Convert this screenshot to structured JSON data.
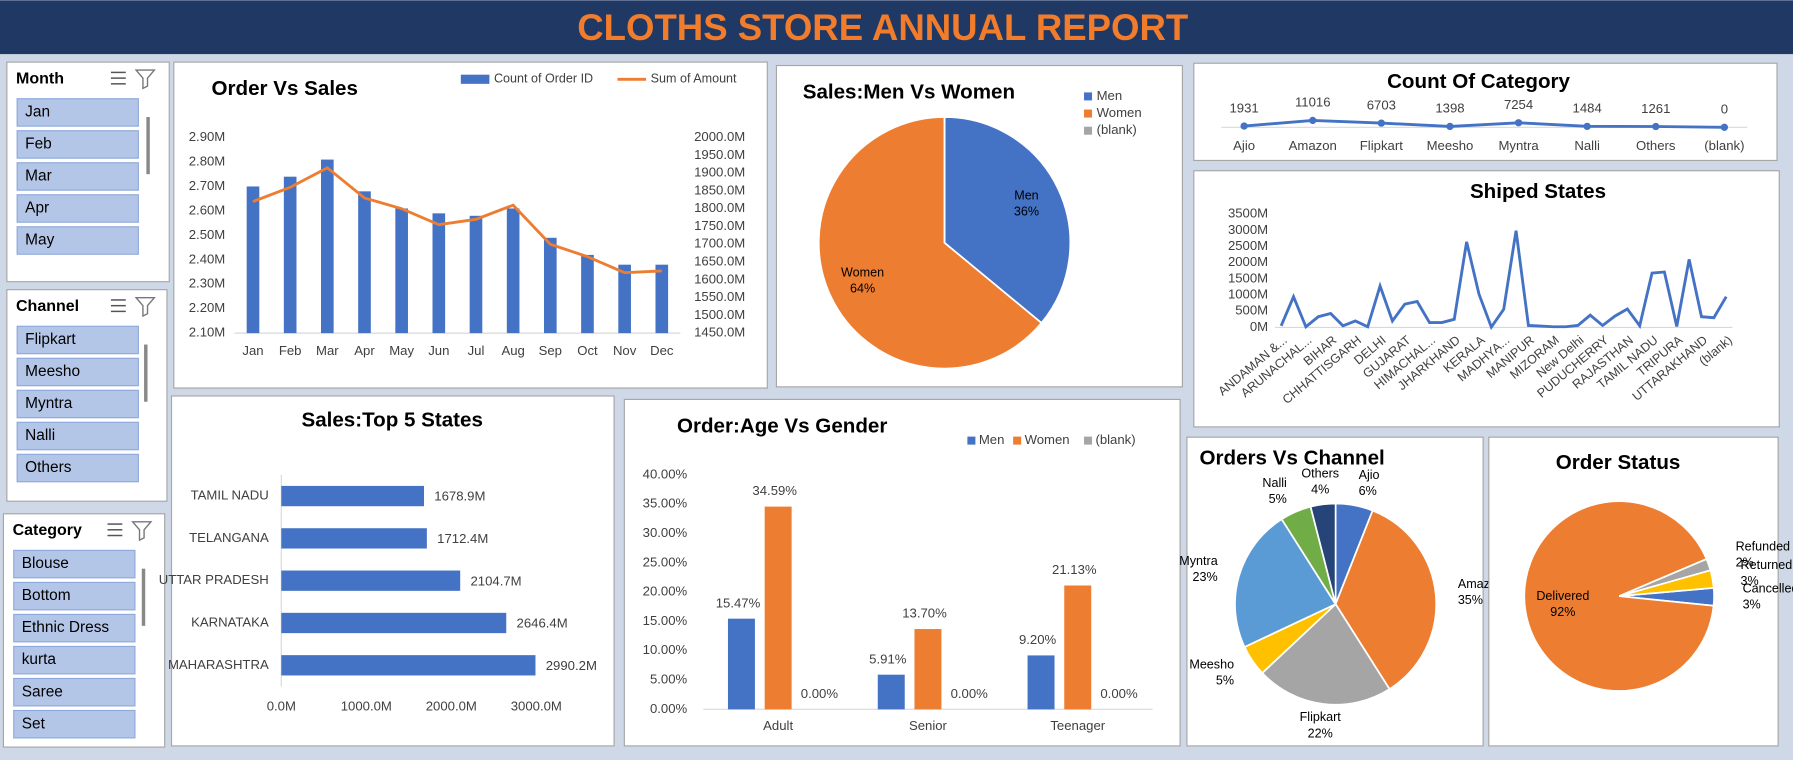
{
  "title": "CLOTHS STORE ANNUAL REPORT",
  "slicers": [
    {
      "title": "Month",
      "items": [
        "Jan",
        "Feb",
        "Mar",
        "Apr",
        "May"
      ]
    },
    {
      "title": "Channel",
      "items": [
        "Flipkart",
        "Meesho",
        "Myntra",
        "Nalli",
        "Others"
      ]
    },
    {
      "title": "Category",
      "items": [
        "Blouse",
        "Bottom",
        "Ethnic Dress",
        "kurta",
        "Saree",
        "Set"
      ]
    }
  ],
  "chart_data": [
    {
      "type": "bar_line",
      "title": "Order Vs Sales",
      "categories": [
        "Jan",
        "Feb",
        "Mar",
        "Apr",
        "May",
        "Jun",
        "Jul",
        "Aug",
        "Sep",
        "Oct",
        "Nov",
        "Dec"
      ],
      "series": [
        {
          "name": "Count of Order ID",
          "color": "#4472c4",
          "values": [
            2.7,
            2.74,
            2.81,
            2.68,
            2.61,
            2.59,
            2.58,
            2.61,
            2.49,
            2.42,
            2.38,
            2.38
          ]
        },
        {
          "name": "Sum of Amount",
          "color": "#ed7d31",
          "axis": "y2",
          "values": [
            1820,
            1860,
            1915,
            1830,
            1800,
            1755,
            1770,
            1810,
            1700,
            1665,
            1620,
            1625
          ]
        }
      ],
      "ylim": [
        2.1,
        2.9
      ],
      "yticks": [
        {
          "value": 2.1,
          "label": "2.10M"
        },
        {
          "value": 2.2,
          "label": "2.20M"
        },
        {
          "value": 2.3,
          "label": "2.30M"
        },
        {
          "value": 2.4,
          "label": "2.40M"
        },
        {
          "value": 2.5,
          "label": "2.50M"
        },
        {
          "value": 2.6,
          "label": "2.60M"
        },
        {
          "value": 2.7,
          "label": "2.70M"
        },
        {
          "value": 2.8,
          "label": "2.80M"
        },
        {
          "value": 2.9,
          "label": "2.90M"
        }
      ],
      "y2lim": [
        1450,
        2000
      ],
      "y2ticks": [
        {
          "value": 1450,
          "label": "1450.0M"
        },
        {
          "value": 1500,
          "label": "1500.0M"
        },
        {
          "value": 1550,
          "label": "1550.0M"
        },
        {
          "value": 1600,
          "label": "1600.0M"
        },
        {
          "value": 1650,
          "label": "1650.0M"
        },
        {
          "value": 1700,
          "label": "1700.0M"
        },
        {
          "value": 1750,
          "label": "1750.0M"
        },
        {
          "value": 1800,
          "label": "1800.0M"
        },
        {
          "value": 1850,
          "label": "1850.0M"
        },
        {
          "value": 1900,
          "label": "1900.0M"
        },
        {
          "value": 1950,
          "label": "1950.0M"
        },
        {
          "value": 2000,
          "label": "2000.0M"
        }
      ]
    },
    {
      "type": "pie",
      "title": "Sales:Men Vs Women",
      "categories": [
        "Men",
        "Women",
        "(blank)"
      ],
      "values": [
        36,
        64,
        0
      ],
      "value_labels": [
        "36%",
        "64%",
        null
      ],
      "colors": [
        "#4472c4",
        "#ed7d31",
        "#a5a5a5"
      ],
      "legend": "right"
    },
    {
      "type": "line",
      "title": "Count Of Category",
      "categories": [
        "Ajio",
        "Amazon",
        "Flipkart",
        "Meesho",
        "Myntra",
        "Nalli",
        "Others",
        "(blank)"
      ],
      "values": [
        1931,
        11016,
        6703,
        1398,
        7254,
        1484,
        1261,
        0
      ],
      "color": "#4472c4",
      "markers": true,
      "data_labels": true
    },
    {
      "type": "line",
      "title": "Shiped States",
      "categories": [
        "ANDAMAN &...",
        null,
        "ARUNACHAL...",
        null,
        "BIHAR",
        null,
        "CHHATTISGARH",
        null,
        "DELHI",
        null,
        "GUJARAT",
        null,
        "HIMACHAL...",
        null,
        "JHARKHAND",
        null,
        "KERALA",
        null,
        "MADHYA...",
        null,
        "MANIPUR",
        null,
        "MIZORAM",
        null,
        "New Delhi",
        null,
        "PUDUCHERRY",
        null,
        "RAJASTHAN",
        null,
        "TAMIL NADU",
        null,
        "TRIPURA",
        null,
        "UTTARAKHAND",
        null,
        "(blank)"
      ],
      "values": [
        50,
        950,
        20,
        330,
        430,
        50,
        200,
        20,
        1280,
        200,
        720,
        800,
        150,
        150,
        250,
        2646.4,
        1030,
        10,
        560,
        2990.2,
        60,
        40,
        20,
        20,
        60,
        380,
        60,
        350,
        570,
        50,
        1678.9,
        1712.4,
        30,
        2104.7,
        330,
        300,
        950
      ],
      "color": "#4472c4",
      "ylim": [
        0,
        3500
      ],
      "yticks": [
        {
          "value": 0,
          "label": "0M"
        },
        {
          "value": 500,
          "label": "500M"
        },
        {
          "value": 1000,
          "label": "1000M"
        },
        {
          "value": 1500,
          "label": "1500M"
        },
        {
          "value": 2000,
          "label": "2000M"
        },
        {
          "value": 2500,
          "label": "2500M"
        },
        {
          "value": 3000,
          "label": "3000M"
        },
        {
          "value": 3500,
          "label": "3500M"
        }
      ]
    },
    {
      "type": "hbar",
      "title": "Sales:Top 5 States",
      "categories": [
        "TAMIL NADU",
        "TELANGANA",
        "UTTAR PRADESH",
        "KARNATAKA",
        "MAHARASHTRA"
      ],
      "values": [
        1678.9,
        1712.4,
        2104.7,
        2646.4,
        2990.2
      ],
      "value_labels": [
        "1678.9M",
        "1712.4M",
        "2104.7M",
        "2646.4M",
        "2990.2M"
      ],
      "color": "#4472c4",
      "xlim": [
        0,
        3000
      ],
      "xticks": [
        {
          "value": 0,
          "label": "0.0M"
        },
        {
          "value": 1000,
          "label": "1000.0M"
        },
        {
          "value": 2000,
          "label": "2000.0M"
        },
        {
          "value": 3000,
          "label": "3000.0M"
        }
      ]
    },
    {
      "type": "grouped_bar",
      "title": "Order:Age Vs Gender",
      "categories": [
        "Adult",
        "Senior",
        "Teenager"
      ],
      "series": [
        {
          "name": "Men",
          "color": "#4472c4",
          "values": [
            15.47,
            5.91,
            9.2
          ],
          "value_labels": [
            "15.47%",
            "5.91%",
            "9.20%"
          ]
        },
        {
          "name": "Women",
          "color": "#ed7d31",
          "values": [
            34.59,
            13.7,
            21.13
          ],
          "value_labels": [
            "34.59%",
            "13.70%",
            "21.13%"
          ]
        },
        {
          "name": "(blank)",
          "color": "#a5a5a5",
          "values": [
            0,
            0,
            0
          ],
          "value_labels": [
            "0.00%",
            "0.00%",
            "0.00%"
          ]
        }
      ],
      "ylim": [
        0,
        40
      ],
      "yticks": [
        {
          "value": 0,
          "label": "0.00%"
        },
        {
          "value": 5,
          "label": "5.00%"
        },
        {
          "value": 10,
          "label": "10.00%"
        },
        {
          "value": 15,
          "label": "15.00%"
        },
        {
          "value": 20,
          "label": "20.00%"
        },
        {
          "value": 25,
          "label": "25.00%"
        },
        {
          "value": 30,
          "label": "30.00%"
        },
        {
          "value": 35,
          "label": "35.00%"
        },
        {
          "value": 40,
          "label": "40.00%"
        }
      ]
    },
    {
      "type": "pie",
      "title": "Orders Vs Channel",
      "categories": [
        "Ajio",
        "Amazon",
        "Flipkart",
        "Meesho",
        "Myntra",
        "Nalli",
        "Others"
      ],
      "values": [
        6,
        35,
        22,
        5,
        23,
        5,
        4
      ],
      "value_labels": [
        "6%",
        "35%",
        "22%",
        "5%",
        "23%",
        "5%",
        "4%"
      ],
      "colors": [
        "#4472c4",
        "#ed7d31",
        "#a5a5a5",
        "#ffc000",
        "#5b9bd5",
        "#70ad47",
        "#264478"
      ]
    },
    {
      "type": "pie",
      "title": "Order Status",
      "categories": [
        "Cancelled",
        "Delivered",
        "Refunded",
        "Returned"
      ],
      "values": [
        3,
        92,
        2,
        3
      ],
      "value_labels": [
        "3%",
        "92%",
        "2%",
        "3%"
      ],
      "colors": [
        "#4472c4",
        "#ed7d31",
        "#a5a5a5",
        "#ffc000"
      ]
    }
  ]
}
